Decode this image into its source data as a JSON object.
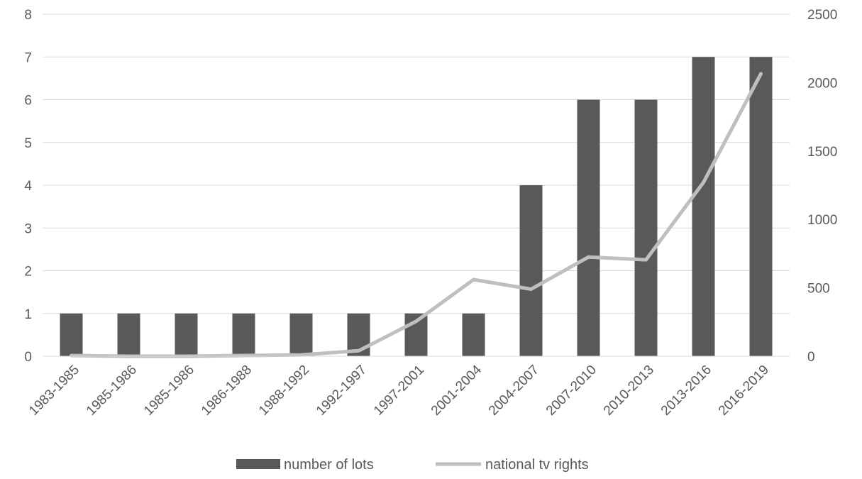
{
  "chart_data": {
    "type": "bar",
    "categories": [
      "1983-1985",
      "1985-1986",
      "1985-1986",
      "1986-1988",
      "1988-1992",
      "1992-1997",
      "1997-2001",
      "2001-2004",
      "2004-2007",
      "2007-2010",
      "2010-2013",
      "2013-2016",
      "2016-2019"
    ],
    "series": [
      {
        "name": "number of lots",
        "type": "bar",
        "axis": "left",
        "color": "#595959",
        "values": [
          1,
          1,
          1,
          1,
          1,
          1,
          1,
          1,
          4,
          6,
          6,
          7,
          7
        ]
      },
      {
        "name": "national tv rights",
        "type": "line",
        "axis": "right",
        "color": "#bfbfbf",
        "values": [
          5,
          0,
          0,
          5,
          10,
          40,
          255,
          560,
          490,
          725,
          705,
          1270,
          2065
        ]
      }
    ],
    "y_left": {
      "ylim": [
        0,
        8
      ],
      "ticks": [
        "0",
        "1",
        "2",
        "3",
        "4",
        "5",
        "6",
        "7",
        "8"
      ]
    },
    "y_right": {
      "ylim": [
        0,
        2500
      ],
      "ticks": [
        "0",
        "500",
        "1000",
        "1500",
        "2000",
        "2500"
      ]
    },
    "grid": true,
    "legend_position": "bottom",
    "title": "",
    "xlabel": "",
    "ylabel": ""
  }
}
